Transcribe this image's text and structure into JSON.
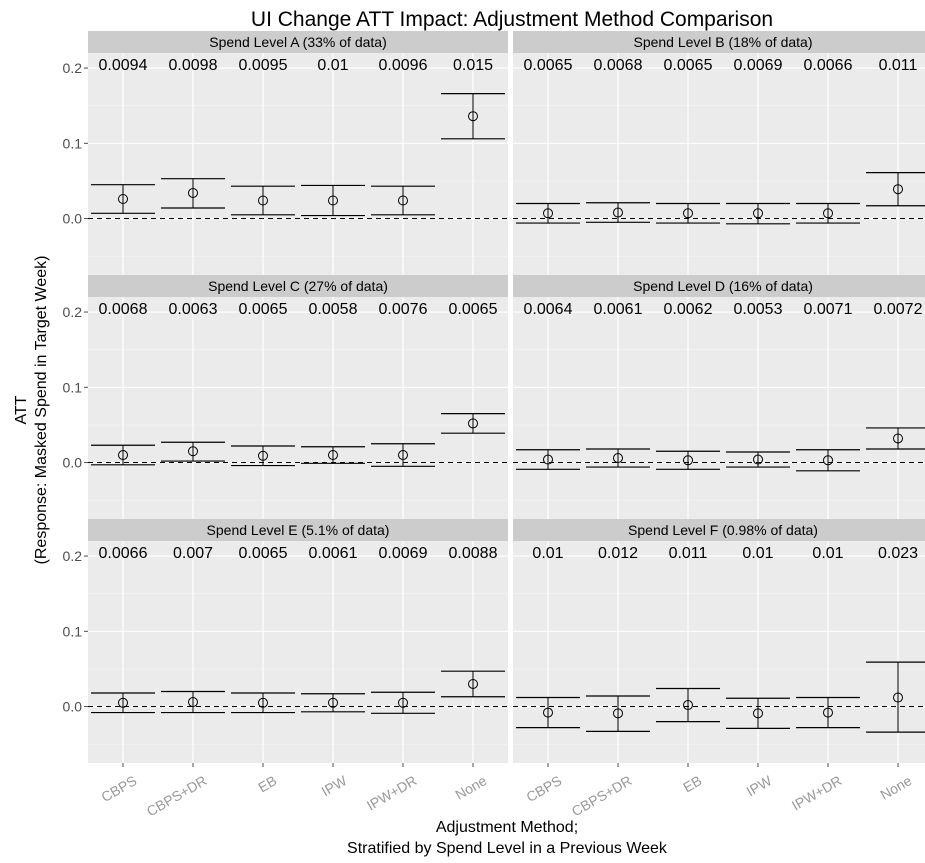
{
  "colors": {
    "panel_bg": "#ebebeb",
    "strip_bg": "#cccccc",
    "grid_major": "#ffffff",
    "grid_minor": "#f5f5f5",
    "ink": "#000000",
    "tick_text": "#4d4d4d",
    "x_tick_text": "#999999"
  },
  "chart_data": {
    "type": "scatter",
    "geom": "point with error bars (faceted 3x2)",
    "title": "UI Change ATT Impact: Adjustment Method Comparison",
    "xlabel_lines": [
      "Adjustment Method;",
      "Stratified by Spend Level in a Previous Week"
    ],
    "ylabel_lines": [
      "ATT",
      "(Response: Masked Spend in Target Week)"
    ],
    "categories": [
      "CBPS",
      "CBPS+DR",
      "EB",
      "IPW",
      "IPW+DR",
      "None"
    ],
    "ylim": [
      -0.075,
      0.22
    ],
    "yticks": [
      0.0,
      0.1,
      0.2
    ],
    "ytick_labels": [
      "0.0",
      "0.1",
      "0.2"
    ],
    "reference_line_y": 0.0,
    "grid": true,
    "panels": [
      {
        "label": "Spend Level A (33% of data)",
        "se_labels": [
          "0.0094",
          "0.0098",
          "0.0095",
          "0.01",
          "0.0096",
          "0.015"
        ],
        "estimate": [
          0.026,
          0.034,
          0.024,
          0.024,
          0.024,
          0.136
        ],
        "lower": [
          0.007,
          0.014,
          0.005,
          0.004,
          0.005,
          0.106
        ],
        "upper": [
          0.045,
          0.053,
          0.043,
          0.044,
          0.043,
          0.166
        ]
      },
      {
        "label": "Spend Level B (18% of data)",
        "se_labels": [
          "0.0065",
          "0.0068",
          "0.0065",
          "0.0069",
          "0.0066",
          "0.011"
        ],
        "estimate": [
          0.007,
          0.008,
          0.007,
          0.007,
          0.007,
          0.039
        ],
        "lower": [
          -0.006,
          -0.005,
          -0.006,
          -0.007,
          -0.006,
          0.017
        ],
        "upper": [
          0.02,
          0.021,
          0.02,
          0.02,
          0.02,
          0.061
        ]
      },
      {
        "label": "Spend Level C (27% of data)",
        "se_labels": [
          "0.0068",
          "0.0063",
          "0.0065",
          "0.0058",
          "0.0076",
          "0.0065"
        ],
        "estimate": [
          0.01,
          0.015,
          0.009,
          0.01,
          0.01,
          0.052
        ],
        "lower": [
          -0.003,
          0.002,
          -0.004,
          -0.001,
          -0.005,
          0.039
        ],
        "upper": [
          0.023,
          0.027,
          0.022,
          0.021,
          0.025,
          0.065
        ]
      },
      {
        "label": "Spend Level D (16% of data)",
        "se_labels": [
          "0.0064",
          "0.0061",
          "0.0062",
          "0.0053",
          "0.0071",
          "0.0072"
        ],
        "estimate": [
          0.004,
          0.006,
          0.003,
          0.004,
          0.003,
          0.032
        ],
        "lower": [
          -0.009,
          -0.006,
          -0.009,
          -0.006,
          -0.011,
          0.018
        ],
        "upper": [
          0.017,
          0.018,
          0.015,
          0.014,
          0.017,
          0.046
        ]
      },
      {
        "label": "Spend Level E (5.1% of data)",
        "se_labels": [
          "0.0066",
          "0.007",
          "0.0065",
          "0.0061",
          "0.0069",
          "0.0088"
        ],
        "estimate": [
          0.005,
          0.006,
          0.005,
          0.005,
          0.005,
          0.03
        ],
        "lower": [
          -0.008,
          -0.008,
          -0.008,
          -0.007,
          -0.009,
          0.013
        ],
        "upper": [
          0.018,
          0.02,
          0.018,
          0.017,
          0.019,
          0.047
        ]
      },
      {
        "label": "Spend Level F (0.98% of data)",
        "se_labels": [
          "0.01",
          "0.012",
          "0.011",
          "0.01",
          "0.01",
          "0.023"
        ],
        "estimate": [
          -0.008,
          -0.009,
          0.002,
          -0.009,
          -0.008,
          0.012
        ],
        "lower": [
          -0.028,
          -0.033,
          -0.02,
          -0.029,
          -0.028,
          -0.034
        ],
        "upper": [
          0.012,
          0.014,
          0.024,
          0.011,
          0.012,
          0.059
        ]
      }
    ]
  }
}
